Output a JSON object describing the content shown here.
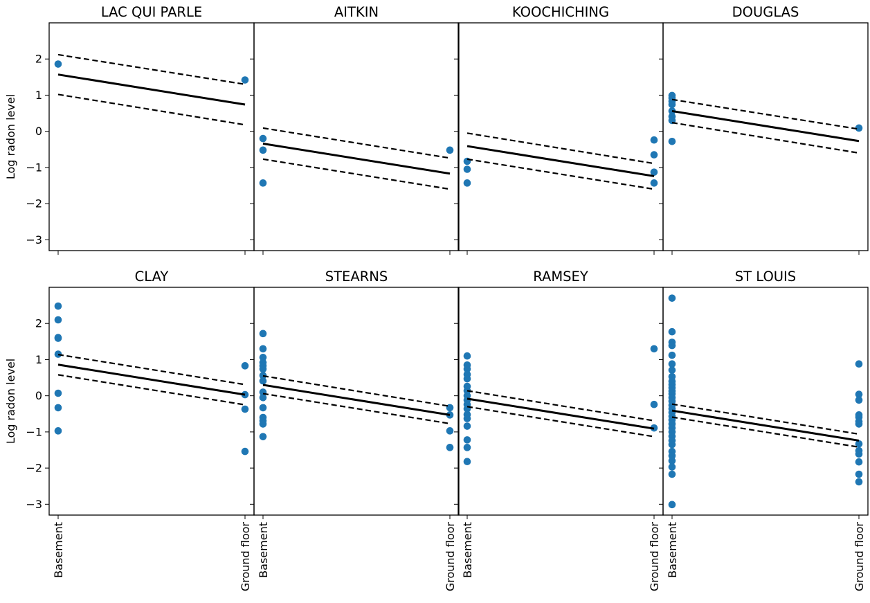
{
  "chart_data": {
    "type": "scatter",
    "layout": {
      "rows": 2,
      "cols": 4,
      "sharey": true,
      "sharex": true
    },
    "ylabel": "Log radon level",
    "x_categories": [
      "Basement",
      "Ground floor"
    ],
    "x_numeric": [
      0,
      1
    ],
    "ylim": [
      -3.3,
      3.0
    ],
    "yticks": [
      -3,
      -2,
      -1,
      0,
      1,
      2
    ],
    "ytick_labels": [
      "−3",
      "−2",
      "−1",
      "0",
      "1",
      "2"
    ],
    "colors": {
      "points": "#1f77b4",
      "fit": "#000000",
      "interval": "#000000"
    },
    "panels": [
      {
        "title": "LAC QUI PARLE",
        "fit": [
          1.57,
          0.74
        ],
        "upper": [
          2.12,
          1.3
        ],
        "lower": [
          1.02,
          0.18
        ],
        "points": [
          [
            0,
            1.86
          ],
          [
            1,
            1.42
          ]
        ]
      },
      {
        "title": "AITKIN",
        "fit": [
          -0.34,
          -1.17
        ],
        "upper": [
          0.09,
          -0.74
        ],
        "lower": [
          -0.77,
          -1.6
        ],
        "points": [
          [
            0,
            -0.2
          ],
          [
            0,
            -0.52
          ],
          [
            0,
            -1.43
          ],
          [
            1,
            -0.52
          ]
        ]
      },
      {
        "title": "KOOCHICHING",
        "fit": [
          -0.41,
          -1.24
        ],
        "upper": [
          -0.05,
          -0.89
        ],
        "lower": [
          -0.77,
          -1.6
        ],
        "points": [
          [
            0,
            -0.83
          ],
          [
            0,
            -1.05
          ],
          [
            0,
            -1.43
          ],
          [
            1,
            -0.24
          ],
          [
            1,
            -0.65
          ],
          [
            1,
            -1.13
          ],
          [
            1,
            -1.43
          ]
        ]
      },
      {
        "title": "DOUGLAS",
        "fit": [
          0.56,
          -0.27
        ],
        "upper": [
          0.88,
          0.06
        ],
        "lower": [
          0.24,
          -0.6
        ],
        "points": [
          [
            0,
            0.99
          ],
          [
            0,
            0.92
          ],
          [
            0,
            0.83
          ],
          [
            0,
            0.74
          ],
          [
            0,
            0.56
          ],
          [
            0,
            0.41
          ],
          [
            0,
            0.3
          ],
          [
            0,
            -0.28
          ],
          [
            1,
            0.09
          ]
        ]
      },
      {
        "title": "CLAY",
        "fit": [
          0.86,
          0.03
        ],
        "upper": [
          1.14,
          0.31
        ],
        "lower": [
          0.58,
          -0.25
        ],
        "points": [
          [
            0,
            2.48
          ],
          [
            0,
            2.1
          ],
          [
            0,
            1.61
          ],
          [
            0,
            1.59
          ],
          [
            0,
            1.15
          ],
          [
            0,
            0.07
          ],
          [
            0,
            -0.33
          ],
          [
            0,
            -0.97
          ],
          [
            1,
            0.83
          ],
          [
            1,
            0.03
          ],
          [
            1,
            -0.37
          ],
          [
            1,
            -1.54
          ]
        ]
      },
      {
        "title": "STEARNS",
        "fit": [
          0.3,
          -0.53
        ],
        "upper": [
          0.55,
          -0.29
        ],
        "lower": [
          0.06,
          -0.77
        ],
        "points": [
          [
            0,
            1.72
          ],
          [
            0,
            1.3
          ],
          [
            0,
            1.06
          ],
          [
            0,
            0.92
          ],
          [
            0,
            0.83
          ],
          [
            0,
            0.74
          ],
          [
            0,
            0.56
          ],
          [
            0,
            0.41
          ],
          [
            0,
            0.1
          ],
          [
            0,
            -0.05
          ],
          [
            0,
            -0.33
          ],
          [
            0,
            -0.6
          ],
          [
            0,
            -0.69
          ],
          [
            0,
            -0.78
          ],
          [
            0,
            -1.13
          ],
          [
            1,
            -0.33
          ],
          [
            1,
            -0.53
          ],
          [
            1,
            -0.97
          ],
          [
            1,
            -1.43
          ]
        ]
      },
      {
        "title": "RAMSEY",
        "fit": [
          -0.08,
          -0.91
        ],
        "upper": [
          0.14,
          -0.69
        ],
        "lower": [
          -0.3,
          -1.13
        ],
        "points": [
          [
            0,
            1.1
          ],
          [
            0,
            0.85
          ],
          [
            0,
            0.74
          ],
          [
            0,
            0.59
          ],
          [
            0,
            0.47
          ],
          [
            0,
            0.26
          ],
          [
            0,
            0.14
          ],
          [
            0,
            0.0
          ],
          [
            0,
            -0.12
          ],
          [
            0,
            -0.24
          ],
          [
            0,
            -0.36
          ],
          [
            0,
            -0.52
          ],
          [
            0,
            -0.63
          ],
          [
            0,
            -0.84
          ],
          [
            0,
            -1.22
          ],
          [
            0,
            -1.43
          ],
          [
            0,
            -1.82
          ],
          [
            1,
            1.3
          ],
          [
            1,
            -0.24
          ],
          [
            1,
            -0.89
          ]
        ]
      },
      {
        "title": "ST LOUIS",
        "fit": [
          -0.41,
          -1.24
        ],
        "upper": [
          -0.23,
          -1.06
        ],
        "lower": [
          -0.59,
          -1.42
        ],
        "points": [
          [
            0,
            2.7
          ],
          [
            0,
            1.77
          ],
          [
            0,
            1.48
          ],
          [
            0,
            1.39
          ],
          [
            0,
            1.12
          ],
          [
            0,
            0.88
          ],
          [
            0,
            0.71
          ],
          [
            0,
            0.53
          ],
          [
            0,
            0.4
          ],
          [
            0,
            0.31
          ],
          [
            0,
            0.22
          ],
          [
            0,
            0.13
          ],
          [
            0,
            0.05
          ],
          [
            0,
            -0.05
          ],
          [
            0,
            -0.15
          ],
          [
            0,
            -0.26
          ],
          [
            0,
            -0.36
          ],
          [
            0,
            -0.46
          ],
          [
            0,
            -0.57
          ],
          [
            0,
            -0.67
          ],
          [
            0,
            -0.78
          ],
          [
            0,
            -0.89
          ],
          [
            0,
            -1.0
          ],
          [
            0,
            -1.12
          ],
          [
            0,
            -1.24
          ],
          [
            0,
            -1.35
          ],
          [
            0,
            -1.54
          ],
          [
            0,
            -1.66
          ],
          [
            0,
            -1.8
          ],
          [
            0,
            -1.97
          ],
          [
            0,
            -2.17
          ],
          [
            0,
            -3.01
          ],
          [
            1,
            0.88
          ],
          [
            1,
            0.04
          ],
          [
            1,
            -0.12
          ],
          [
            1,
            -0.53
          ],
          [
            1,
            -0.59
          ],
          [
            1,
            -0.71
          ],
          [
            1,
            -0.78
          ],
          [
            1,
            -1.33
          ],
          [
            1,
            -1.52
          ],
          [
            1,
            -1.61
          ],
          [
            1,
            -1.83
          ],
          [
            1,
            -2.17
          ],
          [
            1,
            -2.38
          ]
        ]
      }
    ]
  }
}
